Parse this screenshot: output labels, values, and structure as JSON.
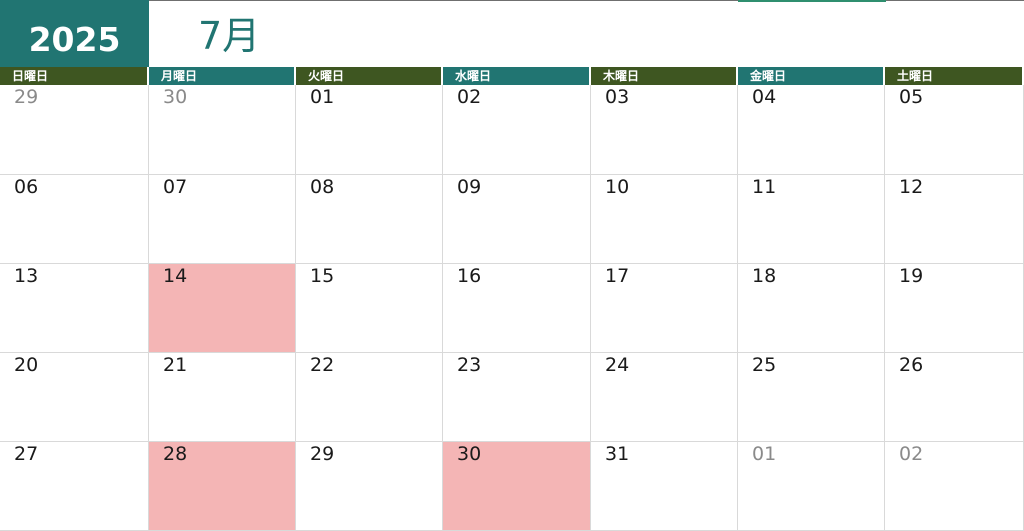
{
  "header": {
    "year": "2025",
    "month": "7月"
  },
  "colors": {
    "header_teal": "#217572",
    "header_olive": "#3e5621",
    "holiday_fill": "#f4b5b5",
    "other_month_text": "#8a8a8a"
  },
  "weekdays": [
    "日曜日",
    "月曜日",
    "火曜日",
    "水曜日",
    "木曜日",
    "金曜日",
    "土曜日"
  ],
  "weeks": [
    [
      {
        "day": "29",
        "other": true,
        "highlight": false
      },
      {
        "day": "30",
        "other": true,
        "highlight": false
      },
      {
        "day": "01",
        "other": false,
        "highlight": false
      },
      {
        "day": "02",
        "other": false,
        "highlight": false
      },
      {
        "day": "03",
        "other": false,
        "highlight": false
      },
      {
        "day": "04",
        "other": false,
        "highlight": false
      },
      {
        "day": "05",
        "other": false,
        "highlight": false
      }
    ],
    [
      {
        "day": "06",
        "other": false,
        "highlight": false
      },
      {
        "day": "07",
        "other": false,
        "highlight": false
      },
      {
        "day": "08",
        "other": false,
        "highlight": false
      },
      {
        "day": "09",
        "other": false,
        "highlight": false
      },
      {
        "day": "10",
        "other": false,
        "highlight": false
      },
      {
        "day": "11",
        "other": false,
        "highlight": false
      },
      {
        "day": "12",
        "other": false,
        "highlight": false
      }
    ],
    [
      {
        "day": "13",
        "other": false,
        "highlight": false
      },
      {
        "day": "14",
        "other": false,
        "highlight": true
      },
      {
        "day": "15",
        "other": false,
        "highlight": false
      },
      {
        "day": "16",
        "other": false,
        "highlight": false
      },
      {
        "day": "17",
        "other": false,
        "highlight": false
      },
      {
        "day": "18",
        "other": false,
        "highlight": false
      },
      {
        "day": "19",
        "other": false,
        "highlight": false
      }
    ],
    [
      {
        "day": "20",
        "other": false,
        "highlight": false
      },
      {
        "day": "21",
        "other": false,
        "highlight": false
      },
      {
        "day": "22",
        "other": false,
        "highlight": false
      },
      {
        "day": "23",
        "other": false,
        "highlight": false
      },
      {
        "day": "24",
        "other": false,
        "highlight": false
      },
      {
        "day": "25",
        "other": false,
        "highlight": false
      },
      {
        "day": "26",
        "other": false,
        "highlight": false
      }
    ],
    [
      {
        "day": "27",
        "other": false,
        "highlight": false
      },
      {
        "day": "28",
        "other": false,
        "highlight": true
      },
      {
        "day": "29",
        "other": false,
        "highlight": false
      },
      {
        "day": "30",
        "other": false,
        "highlight": true
      },
      {
        "day": "31",
        "other": false,
        "highlight": false
      },
      {
        "day": "01",
        "other": true,
        "highlight": false
      },
      {
        "day": "02",
        "other": true,
        "highlight": false
      }
    ]
  ]
}
